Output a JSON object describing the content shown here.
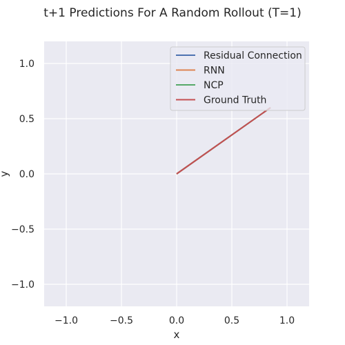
{
  "chart_data": {
    "type": "line",
    "title": "t+1 Predictions For A Random Rollout (T=1)",
    "xlabel": "x",
    "ylabel": "y",
    "xlim": [
      -1.2,
      1.2
    ],
    "ylim": [
      -1.2,
      1.2
    ],
    "xticks": [
      -1.0,
      -0.5,
      0.0,
      0.5,
      1.0
    ],
    "yticks": [
      -1.0,
      -0.5,
      0.0,
      0.5,
      1.0
    ],
    "xtick_labels": [
      "−1.0",
      "−0.5",
      "0.0",
      "0.5",
      "1.0"
    ],
    "ytick_labels": [
      "−1.0",
      "−0.5",
      "0.0",
      "0.5",
      "1.0"
    ],
    "grid": true,
    "legend_position": "top-right",
    "series": [
      {
        "name": "Residual Connection",
        "color": "#4c72b0",
        "x": [
          0.0,
          0.85
        ],
        "y": [
          0.0,
          0.6
        ]
      },
      {
        "name": "RNN",
        "color": "#dd8452",
        "x": [
          0.0,
          0.85
        ],
        "y": [
          0.0,
          0.6
        ]
      },
      {
        "name": "NCP",
        "color": "#55a868",
        "x": [
          0.0,
          0.85
        ],
        "y": [
          0.0,
          0.6
        ]
      },
      {
        "name": "Ground Truth",
        "color": "#c44e52",
        "x": [
          0.0,
          0.85
        ],
        "y": [
          0.0,
          0.6
        ]
      }
    ]
  },
  "colors": {
    "plot_background": "#eaeaf2",
    "grid": "#ffffff"
  }
}
